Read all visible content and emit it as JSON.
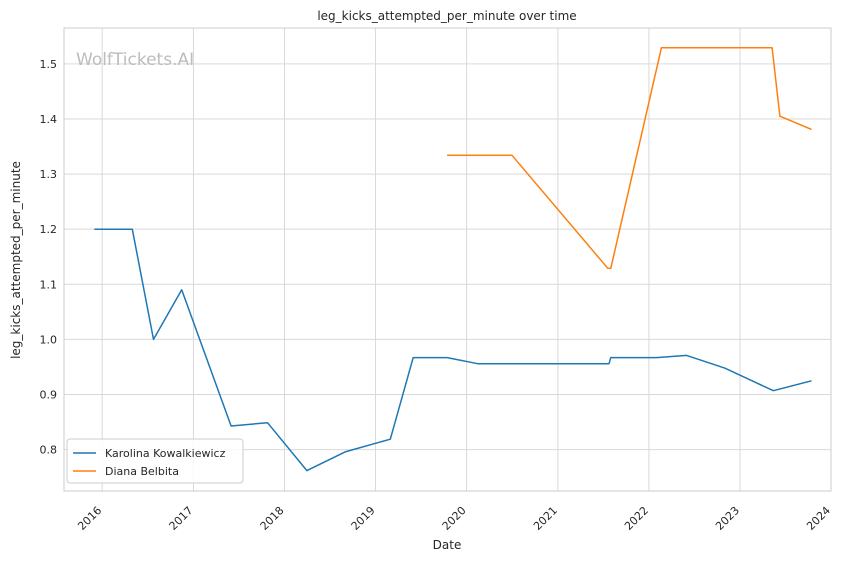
{
  "chart_data": {
    "type": "line",
    "title": "leg_kicks_attempted_per_minute over time",
    "xlabel": "Date",
    "ylabel": "leg_kicks_attempted_per_minute",
    "watermark": "WolfTickets.AI",
    "xlim": [
      "2015-08-01",
      "2024-01-01"
    ],
    "ylim": [
      0.725,
      1.565
    ],
    "x_ticks": [
      "2016",
      "2017",
      "2018",
      "2019",
      "2020",
      "2021",
      "2022",
      "2023",
      "2024"
    ],
    "y_ticks": [
      "0.8",
      "0.9",
      "1.0",
      "1.1",
      "1.2",
      "1.3",
      "1.4",
      "1.5"
    ],
    "grid": true,
    "legend_position": "bottom-left",
    "series": [
      {
        "name": "Karolina Kowalkiewicz",
        "color": "#1f77b4",
        "points": [
          [
            "2015-12-01",
            1.2
          ],
          [
            "2016-05-01",
            1.2
          ],
          [
            "2016-07-25",
            1.0
          ],
          [
            "2016-11-15",
            1.09
          ],
          [
            "2017-06-01",
            0.843
          ],
          [
            "2017-10-25",
            0.849
          ],
          [
            "2018-04-01",
            0.762
          ],
          [
            "2018-09-01",
            0.796
          ],
          [
            "2019-03-01",
            0.819
          ],
          [
            "2019-06-01",
            0.967
          ],
          [
            "2019-10-15",
            0.967
          ],
          [
            "2020-02-15",
            0.956
          ],
          [
            "2021-07-25",
            0.956
          ],
          [
            "2021-08-01",
            0.967
          ],
          [
            "2022-02-01",
            0.967
          ],
          [
            "2022-06-01",
            0.971
          ],
          [
            "2022-11-01",
            0.948
          ],
          [
            "2023-05-15",
            0.907
          ],
          [
            "2023-10-15",
            0.925
          ]
        ]
      },
      {
        "name": "Diana Belbita",
        "color": "#ff7f0e",
        "points": [
          [
            "2019-10-15",
            1.334
          ],
          [
            "2020-07-01",
            1.334
          ],
          [
            "2021-07-20",
            1.129
          ],
          [
            "2021-08-01",
            1.129
          ],
          [
            "2022-02-20",
            1.529
          ],
          [
            "2023-05-10",
            1.529
          ],
          [
            "2023-06-10",
            1.405
          ],
          [
            "2023-10-15",
            1.381
          ]
        ]
      }
    ]
  }
}
